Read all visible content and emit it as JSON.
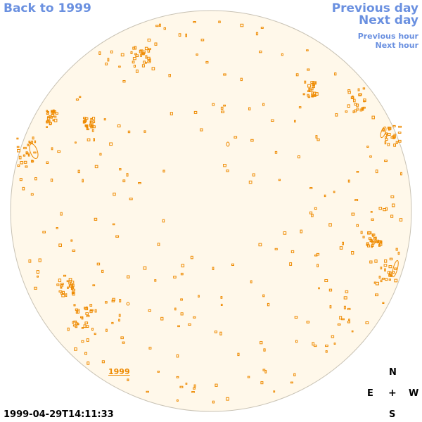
{
  "navigation": {
    "back_label": "Back to 1999",
    "previous_day_label": "Previous day",
    "next_day_label": "Next day",
    "previous_hour_label": "Previous hour",
    "next_hour_label": "Next hour"
  },
  "year_tag": "1999",
  "timestamp": "1999-04-29T14:11:33",
  "compass": {
    "north": "N",
    "east": "E",
    "west": "W",
    "south": "S",
    "center": "+"
  },
  "colors": {
    "link": "#6a90e0",
    "disk_fill": "#fff8ea",
    "disk_edge": "#c8c2b4",
    "feature": "#ee8a00"
  }
}
